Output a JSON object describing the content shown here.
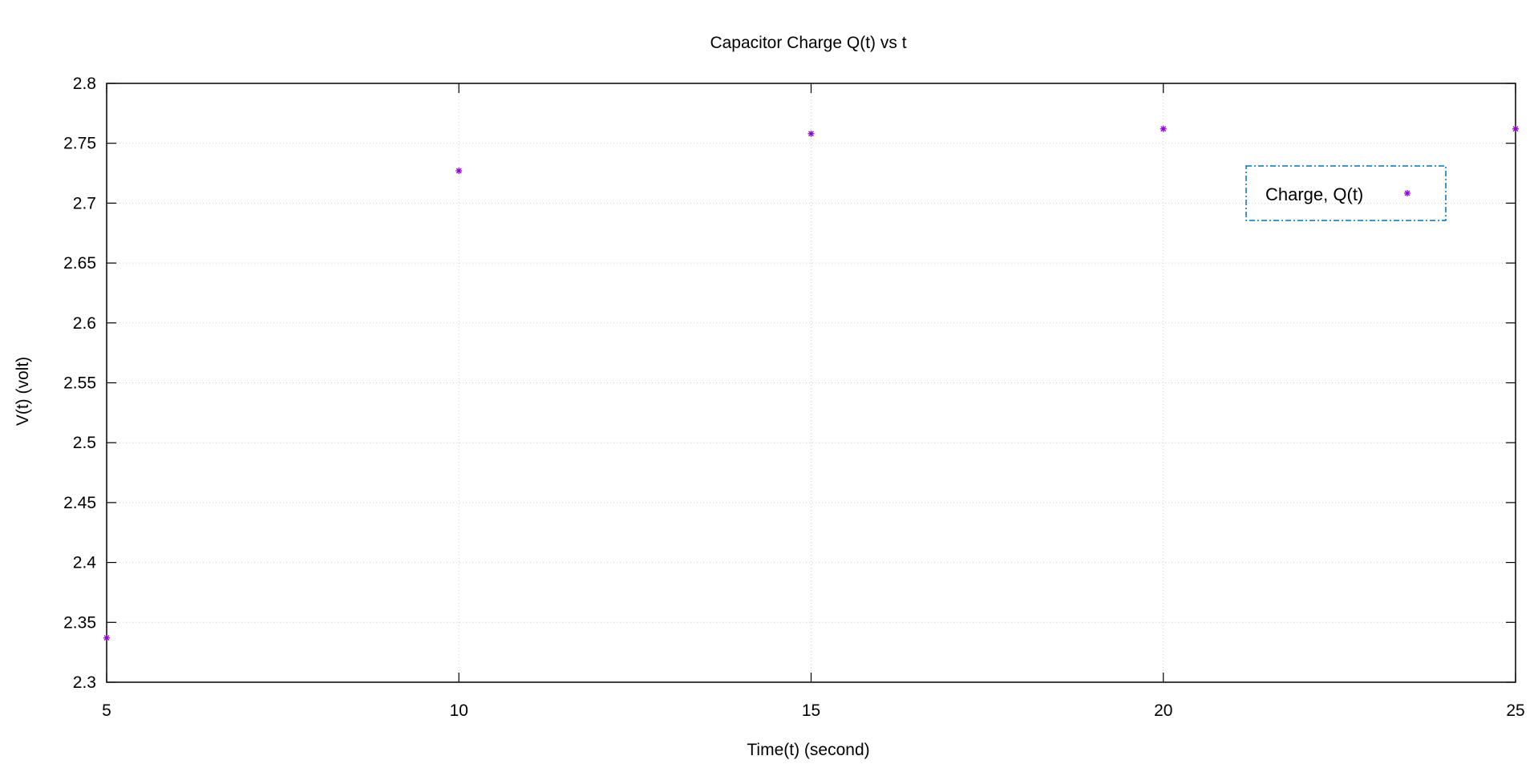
{
  "chart_data": {
    "type": "scatter",
    "title": "Capacitor Charge Q(t) vs t",
    "xlabel": "Time(t) (second)",
    "ylabel": "V(t) (volt)",
    "xlim": [
      5,
      25
    ],
    "ylim": [
      2.3,
      2.8
    ],
    "xticks": [
      5,
      10,
      15,
      20,
      25
    ],
    "xtick_labels": [
      "5",
      "10",
      "15",
      "20",
      "25"
    ],
    "yticks": [
      2.3,
      2.35,
      2.4,
      2.45,
      2.5,
      2.55,
      2.6,
      2.65,
      2.7,
      2.75,
      2.8
    ],
    "ytick_labels": [
      "2.3",
      "2.35",
      "2.4",
      "2.45",
      "2.5",
      "2.55",
      "2.6",
      "2.65",
      "2.7",
      "2.75",
      "2.8"
    ],
    "grid": true,
    "legend_position": "top-right",
    "series": [
      {
        "name": "Charge, Q(t)",
        "color": "#9400d3",
        "marker": "asterisk",
        "x": [
          5,
          10,
          15,
          20,
          25
        ],
        "y": [
          2.337,
          2.727,
          2.758,
          2.762,
          2.762
        ]
      }
    ],
    "legend_border_color": "#0072bd"
  }
}
